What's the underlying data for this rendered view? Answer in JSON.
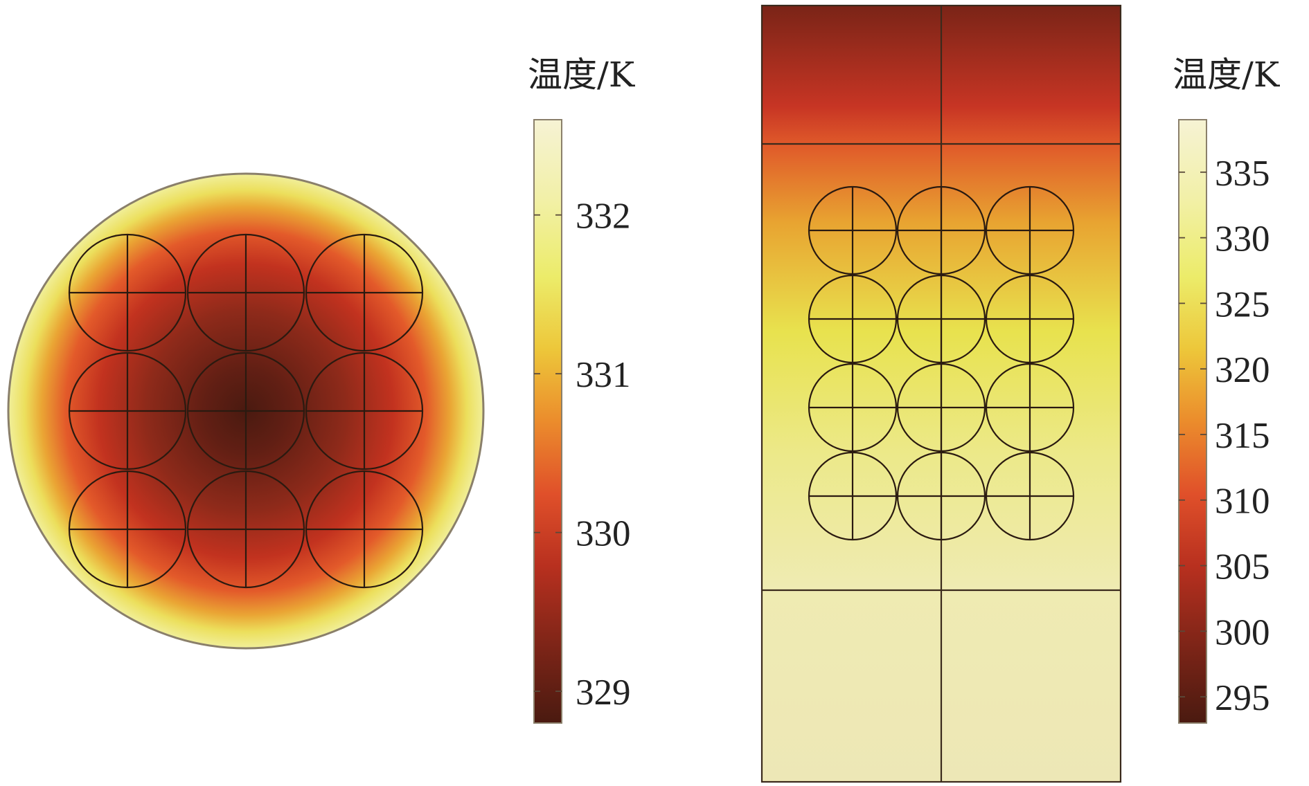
{
  "chart_data": [
    {
      "type": "heatmap",
      "panel": "left",
      "colorbar": {
        "title": "温度/K",
        "range": [
          328.8,
          332.6
        ],
        "ticks": [
          329,
          330,
          331,
          332
        ],
        "tick_labels": [
          "329",
          "330",
          "331",
          "332"
        ]
      },
      "domain_shape": "circle",
      "cells": {
        "layout": "grid",
        "rows": 3,
        "cols": 3
      },
      "field": {
        "max_at": "outer rim",
        "min_at": "center cell"
      }
    },
    {
      "type": "heatmap",
      "panel": "right",
      "colorbar": {
        "title": "温度/K",
        "range": [
          293,
          339
        ],
        "ticks": [
          295,
          300,
          305,
          310,
          315,
          320,
          325,
          330,
          335
        ],
        "tick_labels": [
          "295",
          "300",
          "305",
          "310",
          "315",
          "320",
          "325",
          "330",
          "335"
        ]
      },
      "domain_shape": "rectangle",
      "cells": {
        "layout": "grid",
        "rows": 4,
        "cols": 3
      },
      "field": {
        "max_at": "bottom",
        "min_at": "top"
      }
    }
  ],
  "colormap": [
    "#4a1a10",
    "#7a2417",
    "#b8301f",
    "#e0502a",
    "#eb8c2c",
    "#edc73a",
    "#ecec6a",
    "#f2f0a8",
    "#f6f3d4"
  ]
}
